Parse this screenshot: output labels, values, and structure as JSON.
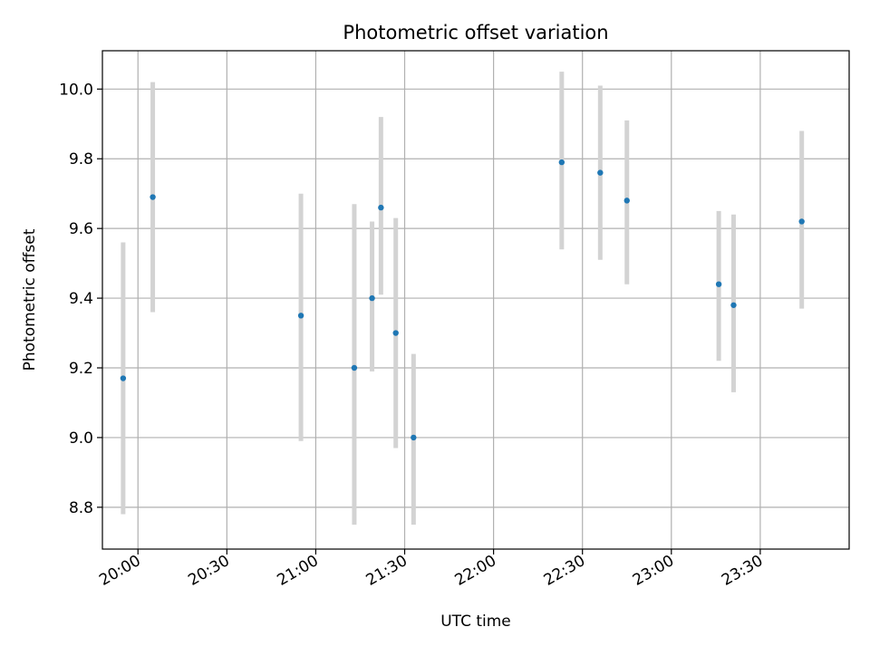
{
  "chart_data": {
    "type": "scatter",
    "title": "Photometric offset variation",
    "xlabel": "UTC time",
    "ylabel": "Photometric offset",
    "x_axis": {
      "kind": "time",
      "range": [
        "19:48",
        "24:00"
      ],
      "ticks": [
        "20:00",
        "20:30",
        "21:00",
        "21:30",
        "22:00",
        "22:30",
        "23:00",
        "23:30"
      ]
    },
    "y_axis": {
      "range": [
        8.68,
        10.11
      ],
      "ticks": [
        "8.8",
        "9.0",
        "9.2",
        "9.4",
        "9.6",
        "9.8",
        "10.0"
      ]
    },
    "grid": true,
    "legend": "none",
    "points": [
      {
        "x": "19:55",
        "y": 9.17,
        "ylow": 8.78,
        "yhigh": 9.56
      },
      {
        "x": "20:05",
        "y": 9.69,
        "ylow": 9.36,
        "yhigh": 10.02
      },
      {
        "x": "20:55",
        "y": 9.35,
        "ylow": 8.99,
        "yhigh": 9.7
      },
      {
        "x": "21:13",
        "y": 9.2,
        "ylow": 8.75,
        "yhigh": 9.67
      },
      {
        "x": "21:19",
        "y": 9.4,
        "ylow": 9.19,
        "yhigh": 9.62
      },
      {
        "x": "21:22",
        "y": 9.66,
        "ylow": 9.41,
        "yhigh": 9.92
      },
      {
        "x": "21:27",
        "y": 9.3,
        "ylow": 8.97,
        "yhigh": 9.63
      },
      {
        "x": "21:33",
        "y": 9.0,
        "ylow": 8.75,
        "yhigh": 9.24
      },
      {
        "x": "22:23",
        "y": 9.79,
        "ylow": 9.54,
        "yhigh": 10.05
      },
      {
        "x": "22:36",
        "y": 9.76,
        "ylow": 9.51,
        "yhigh": 10.01
      },
      {
        "x": "22:45",
        "y": 9.68,
        "ylow": 9.44,
        "yhigh": 9.91
      },
      {
        "x": "23:16",
        "y": 9.44,
        "ylow": 9.22,
        "yhigh": 9.65
      },
      {
        "x": "23:21",
        "y": 9.38,
        "ylow": 9.13,
        "yhigh": 9.64
      },
      {
        "x": "23:44",
        "y": 9.62,
        "ylow": 9.37,
        "yhigh": 9.88
      }
    ],
    "colors": {
      "point": "#1f77b4",
      "errorbar": "#d3d3d3",
      "grid": "#b0b0b0",
      "axis": "#000000"
    }
  }
}
